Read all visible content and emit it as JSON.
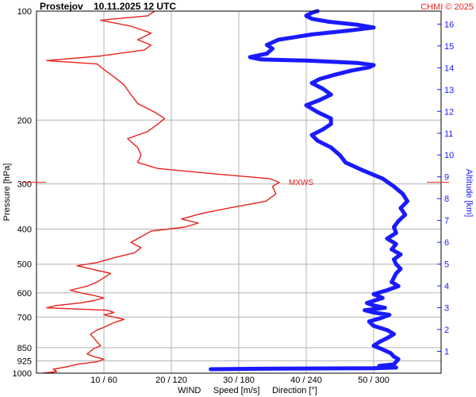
{
  "header": {
    "station": "Prostejov",
    "datetime": "10.11.2025 12 UTC",
    "copyright": "CHMI © 2025"
  },
  "colors": {
    "speed": "#e8221c",
    "direction": "#1a1aff",
    "grid": "#b4b4b4",
    "frame": "#000000"
  },
  "chart_data": {
    "type": "line",
    "title": "Prostejov    10.11.2025 12 UTC",
    "ylabel": "Pressure [hPa]",
    "ylabel_right": "Altitude [km]",
    "xlabel": {
      "wind": "WIND",
      "speed": "Speed [m/s]",
      "direction": "Direction [°]"
    },
    "grid": true,
    "scale": "log-pressure",
    "ylim_pressure": [
      1000,
      100
    ],
    "pressure_ticks": [
      1000,
      925,
      850,
      700,
      600,
      500,
      400,
      300,
      200,
      100
    ],
    "pressure_tick_labels": [
      "1000",
      "925",
      "850",
      "700",
      "600",
      "500",
      "400",
      "300",
      "200",
      "100"
    ],
    "altitude_ticks_km": [
      1,
      2,
      3,
      4,
      5,
      6,
      7,
      8,
      9,
      10,
      11,
      12,
      13,
      14,
      15,
      16
    ],
    "x_ticks": [
      {
        "speed": 10,
        "direction": 60,
        "label": "10 / 60"
      },
      {
        "speed": 20,
        "direction": 120,
        "label": "20 / 120"
      },
      {
        "speed": 30,
        "direction": 180,
        "label": "30 / 180"
      },
      {
        "speed": 40,
        "direction": 240,
        "label": "40 / 240"
      },
      {
        "speed": 50,
        "direction": 300,
        "label": "50 / 300"
      }
    ],
    "xlim_speed": [
      0,
      60
    ],
    "xlim_direction": [
      0,
      360
    ],
    "max_wind_marker": {
      "label": "MXWS",
      "pressure": 297,
      "speed": 36
    },
    "series": [
      {
        "name": "Speed [m/s]",
        "unit": "m/s",
        "points": [
          [
            1000,
            1.0
          ],
          [
            990,
            3.0
          ],
          [
            975,
            2.5
          ],
          [
            960,
            4.5
          ],
          [
            945,
            6.0
          ],
          [
            930,
            9.0
          ],
          [
            915,
            10.0
          ],
          [
            900,
            8.5
          ],
          [
            885,
            7.5
          ],
          [
            870,
            8.0
          ],
          [
            855,
            8.5
          ],
          [
            840,
            9.5
          ],
          [
            820,
            9.0
          ],
          [
            800,
            8.5
          ],
          [
            780,
            8.0
          ],
          [
            760,
            9.0
          ],
          [
            740,
            10.5
          ],
          [
            725,
            11.5
          ],
          [
            710,
            13.0
          ],
          [
            700,
            11.5
          ],
          [
            690,
            10.0
          ],
          [
            680,
            11.5
          ],
          [
            670,
            10.5
          ],
          [
            665,
            6.0
          ],
          [
            660,
            1.5
          ],
          [
            650,
            3.0
          ],
          [
            640,
            6.5
          ],
          [
            630,
            8.5
          ],
          [
            620,
            10.0
          ],
          [
            610,
            8.5
          ],
          [
            600,
            6.5
          ],
          [
            590,
            5.0
          ],
          [
            575,
            7.5
          ],
          [
            560,
            9.0
          ],
          [
            545,
            10.0
          ],
          [
            530,
            11.0
          ],
          [
            515,
            8.0
          ],
          [
            505,
            6.0
          ],
          [
            495,
            9.0
          ],
          [
            480,
            11.5
          ],
          [
            465,
            14.5
          ],
          [
            450,
            15.5
          ],
          [
            435,
            14.0
          ],
          [
            420,
            15.5
          ],
          [
            405,
            17.0
          ],
          [
            395,
            22.0
          ],
          [
            385,
            24.0
          ],
          [
            375,
            21.5
          ],
          [
            362,
            24.5
          ],
          [
            350,
            28.5
          ],
          [
            335,
            34.0
          ],
          [
            320,
            35.5
          ],
          [
            305,
            35.0
          ],
          [
            297,
            36.0
          ],
          [
            290,
            34.5
          ],
          [
            280,
            25.0
          ],
          [
            272,
            18.0
          ],
          [
            262,
            15.0
          ],
          [
            250,
            15.5
          ],
          [
            238,
            15.0
          ],
          [
            225,
            13.5
          ],
          [
            215,
            16.5
          ],
          [
            205,
            18.0
          ],
          [
            198,
            19.0
          ],
          [
            190,
            17.5
          ],
          [
            180,
            15.0
          ],
          [
            170,
            14.0
          ],
          [
            160,
            13.0
          ],
          [
            152,
            11.5
          ],
          [
            145,
            10.0
          ],
          [
            140,
            9.0
          ],
          [
            137,
            1.5
          ],
          [
            133,
            9.5
          ],
          [
            128,
            16.0
          ],
          [
            124,
            17.0
          ],
          [
            120,
            15.0
          ],
          [
            115,
            17.0
          ],
          [
            110,
            14.0
          ],
          [
            106,
            9.5
          ],
          [
            103,
            16.5
          ],
          [
            100,
            17.5
          ]
        ]
      },
      {
        "name": "Direction [°]",
        "unit": "deg",
        "points": [
          [
            975,
            155
          ],
          [
            972,
            200
          ],
          [
            969,
            300
          ],
          [
            965,
            320
          ],
          [
            955,
            305
          ],
          [
            945,
            318
          ],
          [
            930,
            320
          ],
          [
            915,
            322
          ],
          [
            900,
            318
          ],
          [
            880,
            315
          ],
          [
            860,
            308
          ],
          [
            840,
            300
          ],
          [
            820,
            305
          ],
          [
            800,
            312
          ],
          [
            780,
            318
          ],
          [
            760,
            312
          ],
          [
            740,
            300
          ],
          [
            720,
            296
          ],
          [
            705,
            306
          ],
          [
            690,
            314
          ],
          [
            680,
            300
          ],
          [
            670,
            292
          ],
          [
            660,
            310
          ],
          [
            650,
            300
          ],
          [
            640,
            294
          ],
          [
            620,
            308
          ],
          [
            605,
            300
          ],
          [
            590,
            312
          ],
          [
            575,
            322
          ],
          [
            560,
            316
          ],
          [
            545,
            318
          ],
          [
            530,
            320
          ],
          [
            515,
            324
          ],
          [
            500,
            320
          ],
          [
            485,
            318
          ],
          [
            470,
            324
          ],
          [
            455,
            316
          ],
          [
            440,
            320
          ],
          [
            425,
            312
          ],
          [
            410,
            320
          ],
          [
            395,
            318
          ],
          [
            380,
            322
          ],
          [
            365,
            328
          ],
          [
            350,
            324
          ],
          [
            335,
            330
          ],
          [
            320,
            326
          ],
          [
            305,
            318
          ],
          [
            290,
            308
          ],
          [
            275,
            290
          ],
          [
            262,
            275
          ],
          [
            250,
            270
          ],
          [
            238,
            262
          ],
          [
            228,
            250
          ],
          [
            220,
            245
          ],
          [
            212,
            255
          ],
          [
            205,
            262
          ],
          [
            198,
            262
          ],
          [
            190,
            250
          ],
          [
            182,
            240
          ],
          [
            176,
            252
          ],
          [
            170,
            262
          ],
          [
            164,
            255
          ],
          [
            158,
            245
          ],
          [
            154,
            252
          ],
          [
            150,
            265
          ],
          [
            146,
            280
          ],
          [
            143,
            296
          ],
          [
            141,
            300
          ],
          [
            139,
            285
          ],
          [
            137,
            240
          ],
          [
            136,
            200
          ],
          [
            134,
            190
          ],
          [
            131,
            205
          ],
          [
            127,
            210
          ],
          [
            124,
            205
          ],
          [
            120,
            215
          ],
          [
            116,
            245
          ],
          [
            113,
            280
          ],
          [
            111,
            300
          ],
          [
            109,
            285
          ],
          [
            107,
            260
          ],
          [
            105,
            245
          ],
          [
            103,
            240
          ],
          [
            101,
            245
          ],
          [
            100,
            250
          ]
        ]
      }
    ]
  }
}
